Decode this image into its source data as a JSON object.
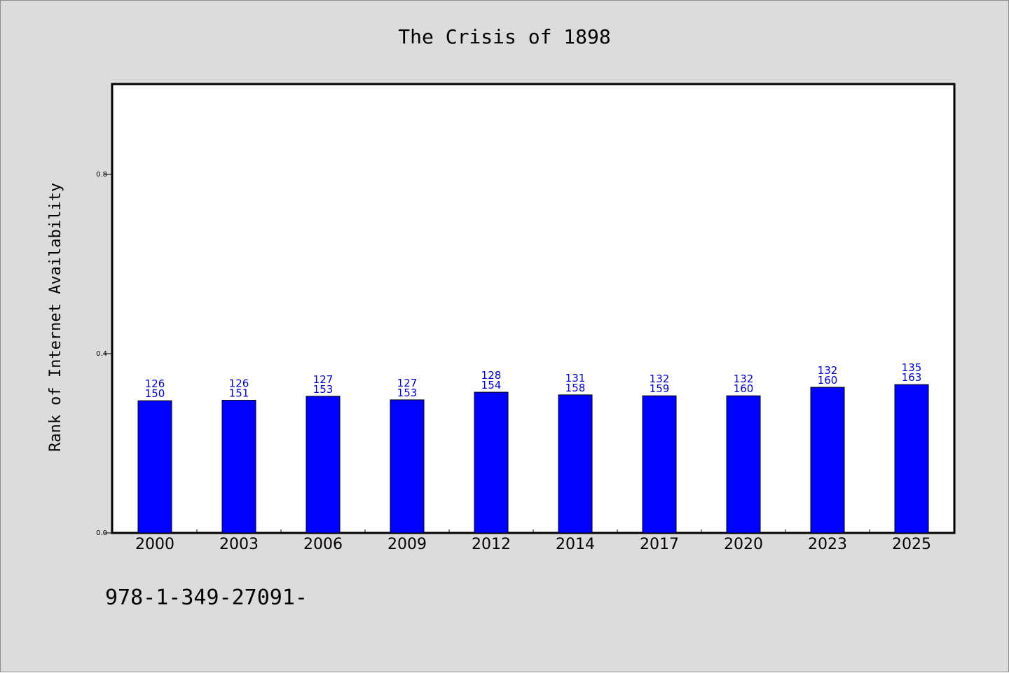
{
  "chart_data": {
    "type": "bar",
    "title": "The Crisis of 1898",
    "xlabel": "",
    "ylabel": "Rank of Internet Availability",
    "categories": [
      "2000",
      "2003",
      "2006",
      "2009",
      "2012",
      "2014",
      "2017",
      "2020",
      "2023",
      "2025"
    ],
    "values": [
      0.295,
      0.296,
      0.305,
      0.297,
      0.314,
      0.308,
      0.306,
      0.306,
      0.325,
      0.331
    ],
    "labels_top": [
      "126",
      "126",
      "127",
      "127",
      "128",
      "131",
      "132",
      "132",
      "132",
      "135"
    ],
    "labels_bottom": [
      "150",
      "151",
      "153",
      "153",
      "154",
      "158",
      "159",
      "160",
      "160",
      "163"
    ],
    "ylim": [
      0,
      1.0
    ],
    "yticks": [
      "0.0",
      "0.4",
      "0.8"
    ],
    "ytick_values": [
      0.0,
      0.4,
      0.8
    ],
    "bar_color": "#0000ff",
    "label_color": "#0000cc",
    "grid": false,
    "legend": "none"
  },
  "footer": {
    "text": "978-1-349-27091-"
  }
}
